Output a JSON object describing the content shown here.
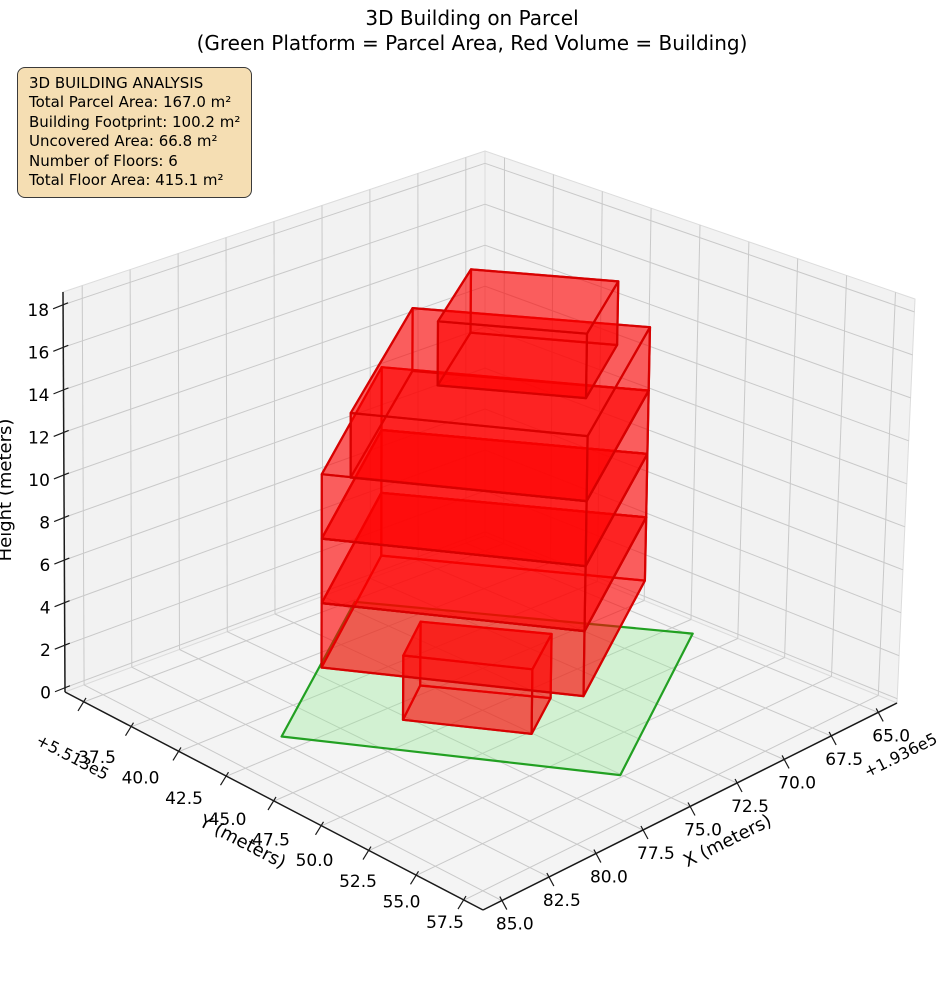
{
  "title": {
    "line1": "3D Building on Parcel",
    "line2": "(Green Platform = Parcel Area, Red Volume = Building)"
  },
  "info_box": {
    "background": "#f5deb3",
    "border_color": "#3a3a3a",
    "lines": [
      "3D BUILDING ANALYSIS",
      "Total Parcel Area: 167.0 m²",
      "Building Footprint: 100.2 m²",
      "Uncovered Area: 66.8 m²",
      "Number of Floors: 6",
      "Total Floor Area: 415.1 m²"
    ]
  },
  "chart_data": {
    "type": "3d-building-plot",
    "grid": true,
    "axes": {
      "x": {
        "label": "X (meters)",
        "offset_text": "+1.936e5",
        "ticks": [
          "65.0",
          "67.5",
          "70.0",
          "72.5",
          "75.0",
          "77.5",
          "80.0",
          "82.5",
          "85.0"
        ],
        "range": [
          64,
          86
        ]
      },
      "y": {
        "label": "Y (meters)",
        "offset_text": "+5.513e5",
        "ticks": [
          "37.5",
          "40.0",
          "42.5",
          "45.0",
          "47.5",
          "50.0",
          "52.5",
          "55.0",
          "57.5"
        ],
        "range": [
          36.5,
          58.5
        ]
      },
      "z": {
        "label": "Height (meters)",
        "ticks": [
          "0",
          "2",
          "4",
          "6",
          "8",
          "10",
          "12",
          "14",
          "16",
          "18"
        ],
        "range": [
          -0.2,
          18.6
        ]
      }
    },
    "parcel": {
      "area_m2": 167.0,
      "z": 0,
      "fill": "#90ee90",
      "fill_opacity": 0.33,
      "edge": "#22a022",
      "corners_xy": [
        [
          82.4,
          44.3
        ],
        [
          75.3,
          55.1
        ],
        [
          65.1,
          48.7
        ],
        [
          72.2,
          37.9
        ]
      ]
    },
    "building": {
      "footprint_m2": 100.2,
      "uncovered_m2": 66.8,
      "num_floors": 6,
      "total_floor_area_m2": 415.1,
      "floor_height_m": 3,
      "face_color": "#ff0000",
      "face_opacity": 0.38,
      "edge_color": "#d60000",
      "floors": [
        {
          "name": "floor-1",
          "z": [
            0,
            3
          ],
          "footprint": [
            [
              78.0,
              46.3
            ],
            [
              75.3,
              50.4
            ],
            [
              72.7,
              48.8
            ],
            [
              75.5,
              44.7
            ]
          ]
        },
        {
          "name": "floor-2",
          "z": [
            3,
            6
          ],
          "footprint": [
            [
              81.0,
              45.0
            ],
            [
              75.5,
              53.3
            ],
            [
              67.0,
              48.0
            ],
            [
              72.5,
              39.6
            ]
          ]
        },
        {
          "name": "floor-3",
          "z": [
            6,
            9
          ],
          "footprint": [
            [
              81.0,
              45.0
            ],
            [
              75.5,
              53.3
            ],
            [
              67.0,
              48.0
            ],
            [
              72.5,
              39.6
            ]
          ]
        },
        {
          "name": "floor-4",
          "z": [
            9,
            12
          ],
          "footprint": [
            [
              81.0,
              45.0
            ],
            [
              75.5,
              53.3
            ],
            [
              67.0,
              48.0
            ],
            [
              72.5,
              39.6
            ]
          ]
        },
        {
          "name": "floor-5",
          "z": [
            12,
            15
          ],
          "footprint": [
            [
              80.4,
              45.9
            ],
            [
              75.5,
              53.3
            ],
            [
              67.0,
              48.0
            ],
            [
              71.9,
              40.6
            ]
          ]
        },
        {
          "name": "floor-6",
          "z": [
            15,
            18
          ],
          "footprint": [
            [
              76.3,
              46.3
            ],
            [
              73.2,
              50.9
            ],
            [
              69.0,
              48.3
            ],
            [
              72.0,
              43.7
            ]
          ]
        }
      ]
    },
    "style": {
      "pane_color": "#f2f2f2",
      "floor_pane_color": "#f4f4f4",
      "grid_color": "#c9c9c9",
      "spine_color": "#1a1a1a",
      "tick_label_color": "#000000"
    }
  }
}
